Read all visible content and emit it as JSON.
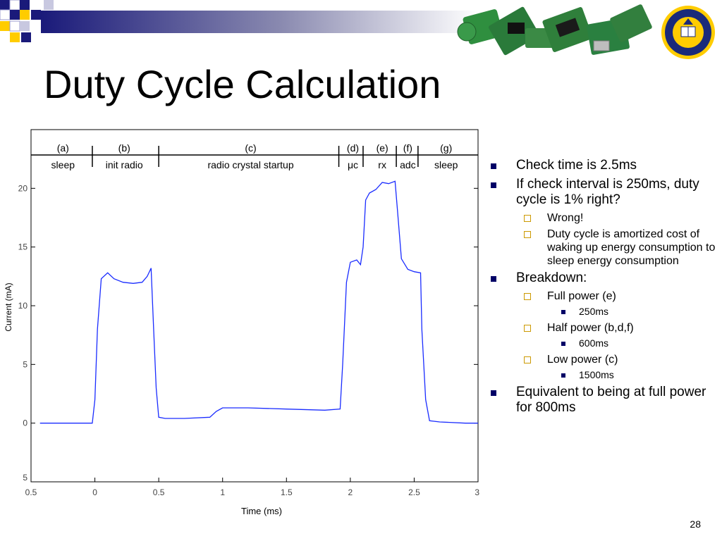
{
  "slide": {
    "title": "Duty Cycle Calculation",
    "page_number": "28",
    "seal_text": "THE UNIVERSITY OF CALIFORNIA BERKELEY 1868"
  },
  "colors": {
    "accent_navy": "#000066",
    "accent_gold": "#ffcc00",
    "trace_blue": "#1a2cff"
  },
  "bullets": [
    {
      "level": 1,
      "text": "Check time is 2.5ms"
    },
    {
      "level": 1,
      "text": "If check interval is 250ms, duty cycle is 1% right?"
    },
    {
      "level": 2,
      "text": "Wrong!"
    },
    {
      "level": 2,
      "text": "Duty cycle is amortized cost of waking up energy consumption to sleep energy consumption"
    },
    {
      "level": 1,
      "text": "Breakdown:"
    },
    {
      "level": 2,
      "text": "Full power (e)"
    },
    {
      "level": 3,
      "text": "250ms"
    },
    {
      "level": 2,
      "text": "Half power (b,d,f)"
    },
    {
      "level": 3,
      "text": "600ms"
    },
    {
      "level": 2,
      "text": "Low power (c)"
    },
    {
      "level": 3,
      "text": "1500ms"
    },
    {
      "level": 1,
      "text": "Equivalent to being at full power for 800ms"
    }
  ],
  "chart_data": {
    "type": "line",
    "title": "",
    "xlabel": "Time (ms)",
    "ylabel": "Current (mA)",
    "xlim": [
      -0.5,
      3
    ],
    "ylim": [
      -5,
      25
    ],
    "x_ticks": [
      {
        "value": -0.5,
        "label": "0.5"
      },
      {
        "value": 0,
        "label": "0"
      },
      {
        "value": 0.5,
        "label": "0.5"
      },
      {
        "value": 1,
        "label": "1"
      },
      {
        "value": 1.5,
        "label": "1.5"
      },
      {
        "value": 2,
        "label": "2"
      },
      {
        "value": 2.5,
        "label": "2.5"
      },
      {
        "value": 3,
        "label": "3"
      }
    ],
    "y_ticks": [
      {
        "value": -5,
        "label": "5"
      },
      {
        "value": 0,
        "label": "0"
      },
      {
        "value": 5,
        "label": "5"
      },
      {
        "value": 10,
        "label": "10"
      },
      {
        "value": 15,
        "label": "15"
      },
      {
        "value": 20,
        "label": "20"
      }
    ],
    "phases": [
      {
        "tag": "(a)",
        "name": "sleep",
        "center": -0.25
      },
      {
        "tag": "(b)",
        "name": "init radio",
        "center": 0.23
      },
      {
        "tag": "(c)",
        "name": "radio crystal startup",
        "center": 1.22
      },
      {
        "tag": "(d)",
        "name": "μc",
        "center": 2.02
      },
      {
        "tag": "(e)",
        "name": "rx",
        "center": 2.25
      },
      {
        "tag": "(f)",
        "name": "adc",
        "center": 2.45
      },
      {
        "tag": "(g)",
        "name": "sleep",
        "center": 2.75
      }
    ],
    "phase_boundaries": [
      -0.02,
      0.5,
      1.91,
      2.1,
      2.36,
      2.53
    ],
    "series": [
      {
        "x": [
          -0.43,
          -0.02,
          0.0,
          0.02,
          0.05,
          0.1,
          0.15,
          0.22,
          0.3,
          0.37,
          0.41,
          0.44,
          0.46,
          0.48,
          0.5,
          0.55,
          0.7,
          0.9,
          0.95,
          1.0,
          1.2,
          1.5,
          1.8,
          1.92,
          1.94,
          1.97,
          2.0,
          2.05,
          2.08,
          2.1,
          2.12,
          2.15,
          2.2,
          2.25,
          2.3,
          2.35,
          2.37,
          2.4,
          2.45,
          2.5,
          2.55,
          2.56,
          2.59,
          2.62,
          2.7,
          2.9,
          3.0
        ],
        "y": [
          0.0,
          0.0,
          2.0,
          8.0,
          12.3,
          12.8,
          12.3,
          12.0,
          11.9,
          12.0,
          12.5,
          13.2,
          8.0,
          3.0,
          0.5,
          0.4,
          0.4,
          0.5,
          1.0,
          1.3,
          1.3,
          1.2,
          1.1,
          1.2,
          5.0,
          12.0,
          13.7,
          13.9,
          13.5,
          15.0,
          19.0,
          19.6,
          19.9,
          20.5,
          20.4,
          20.6,
          18.0,
          14.0,
          13.1,
          12.9,
          12.8,
          8.0,
          2.0,
          0.2,
          0.1,
          0.0,
          0.0
        ]
      }
    ],
    "grid": false,
    "legend": "none"
  }
}
